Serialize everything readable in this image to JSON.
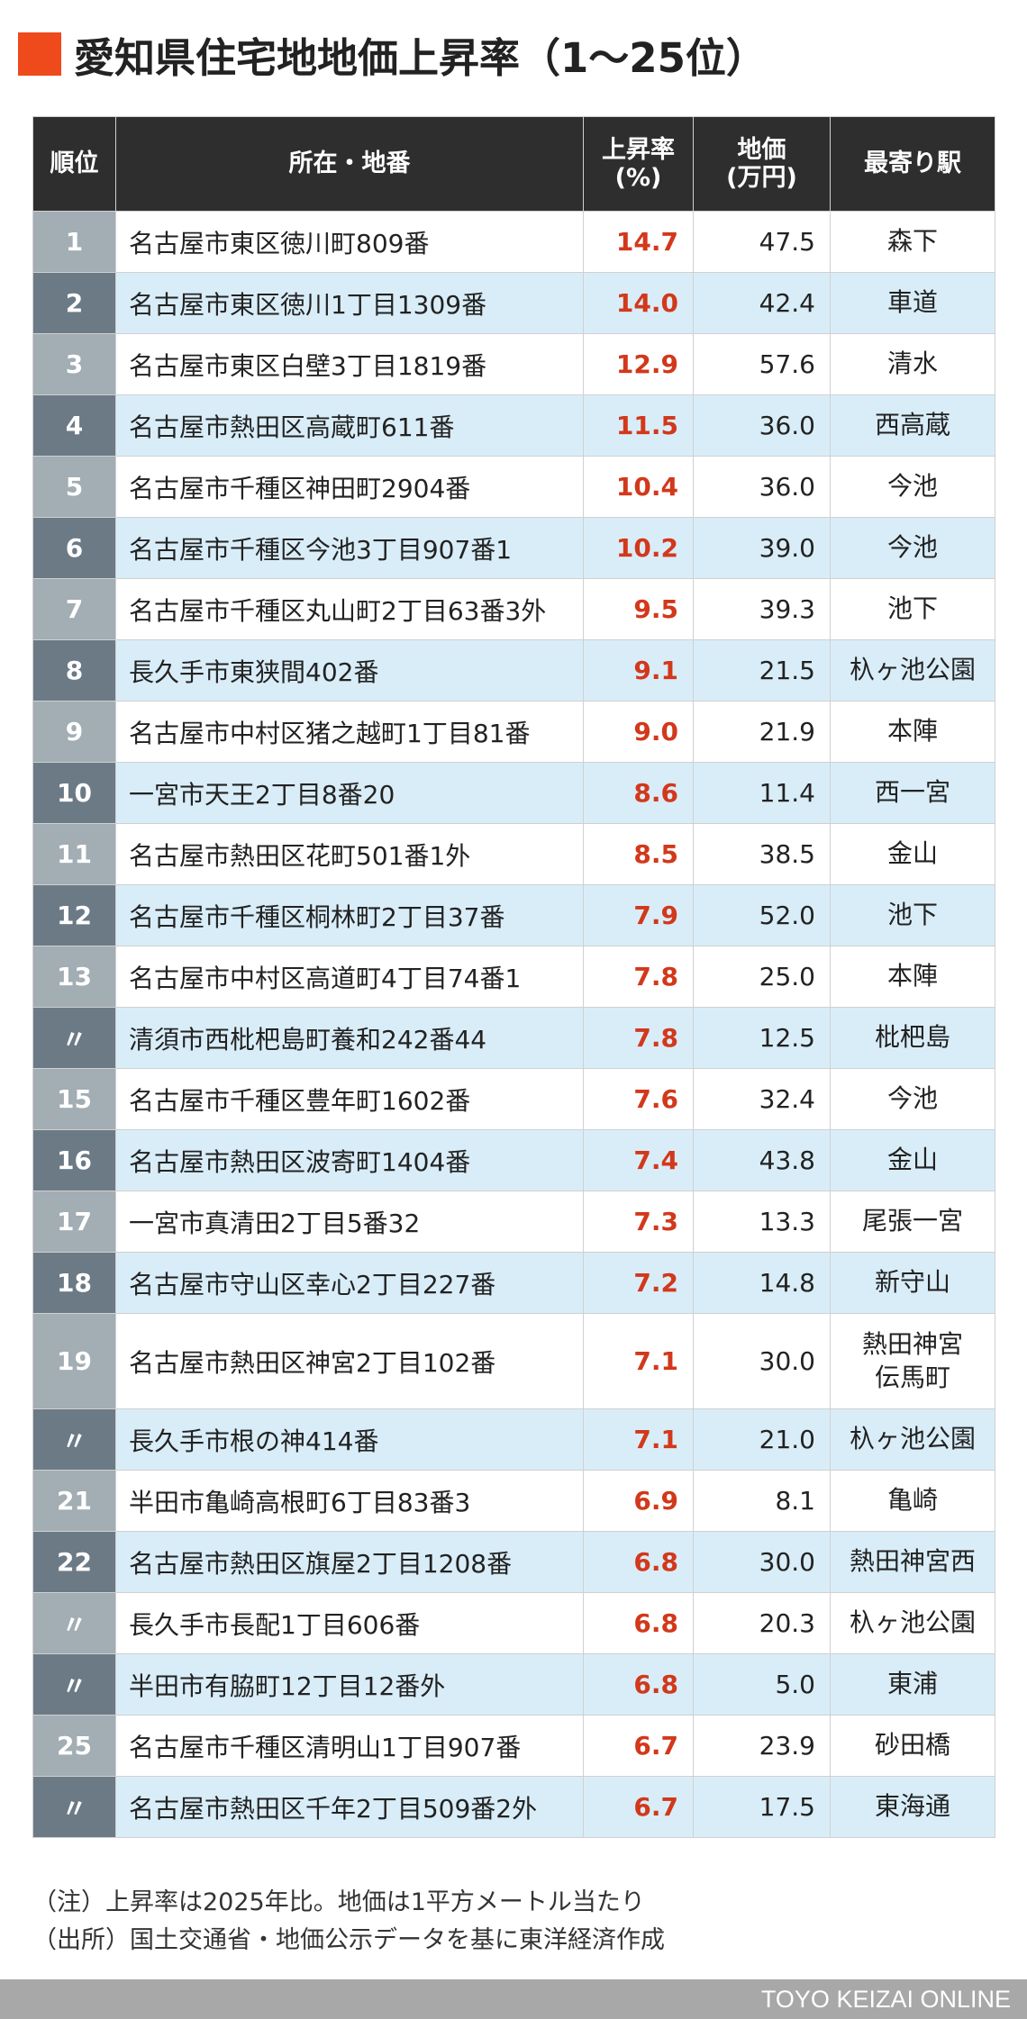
{
  "title": "愛知県住宅地地価上昇率（1〜25位）",
  "colors": {
    "accent": "#ee4a1c",
    "header_bg": "#2e2e2e",
    "rate_text": "#d2381b",
    "stripe": "#d9edf8"
  },
  "table": {
    "headers": {
      "rank": "順位",
      "address": "所在・地番",
      "rate_line1": "上昇率",
      "rate_line2": "(%)",
      "price_line1": "地価",
      "price_line2": "(万円)",
      "station": "最寄り駅"
    },
    "rows": [
      {
        "rank": "1",
        "address": "名古屋市東区徳川町809番",
        "rate": "14.7",
        "price": "47.5",
        "station": "森下"
      },
      {
        "rank": "2",
        "address": "名古屋市東区徳川1丁目1309番",
        "rate": "14.0",
        "price": "42.4",
        "station": "車道"
      },
      {
        "rank": "3",
        "address": "名古屋市東区白壁3丁目1819番",
        "rate": "12.9",
        "price": "57.6",
        "station": "清水"
      },
      {
        "rank": "4",
        "address": "名古屋市熱田区高蔵町611番",
        "rate": "11.5",
        "price": "36.0",
        "station": "西高蔵"
      },
      {
        "rank": "5",
        "address": "名古屋市千種区神田町2904番",
        "rate": "10.4",
        "price": "36.0",
        "station": "今池"
      },
      {
        "rank": "6",
        "address": "名古屋市千種区今池3丁目907番1",
        "rate": "10.2",
        "price": "39.0",
        "station": "今池"
      },
      {
        "rank": "7",
        "address": "名古屋市千種区丸山町2丁目63番3外",
        "rate": "9.5",
        "price": "39.3",
        "station": "池下"
      },
      {
        "rank": "8",
        "address": "長久手市東狭間402番",
        "rate": "9.1",
        "price": "21.5",
        "station": "杁ヶ池公園"
      },
      {
        "rank": "9",
        "address": "名古屋市中村区猪之越町1丁目81番",
        "rate": "9.0",
        "price": "21.9",
        "station": "本陣"
      },
      {
        "rank": "10",
        "address": "一宮市天王2丁目8番20",
        "rate": "8.6",
        "price": "11.4",
        "station": "西一宮"
      },
      {
        "rank": "11",
        "address": "名古屋市熱田区花町501番1外",
        "rate": "8.5",
        "price": "38.5",
        "station": "金山"
      },
      {
        "rank": "12",
        "address": "名古屋市千種区桐林町2丁目37番",
        "rate": "7.9",
        "price": "52.0",
        "station": "池下"
      },
      {
        "rank": "13",
        "address": "名古屋市中村区高道町4丁目74番1",
        "rate": "7.8",
        "price": "25.0",
        "station": "本陣"
      },
      {
        "rank": "〃",
        "address": "清須市西枇杷島町養和242番44",
        "rate": "7.8",
        "price": "12.5",
        "station": "枇杷島"
      },
      {
        "rank": "15",
        "address": "名古屋市千種区豊年町1602番",
        "rate": "7.6",
        "price": "32.4",
        "station": "今池"
      },
      {
        "rank": "16",
        "address": "名古屋市熱田区波寄町1404番",
        "rate": "7.4",
        "price": "43.8",
        "station": "金山"
      },
      {
        "rank": "17",
        "address": "一宮市真清田2丁目5番32",
        "rate": "7.3",
        "price": "13.3",
        "station": "尾張一宮"
      },
      {
        "rank": "18",
        "address": "名古屋市守山区幸心2丁目227番",
        "rate": "7.2",
        "price": "14.8",
        "station": "新守山"
      },
      {
        "rank": "19",
        "address": "名古屋市熱田区神宮2丁目102番",
        "rate": "7.1",
        "price": "30.0",
        "station": "熱田神宮伝馬町"
      },
      {
        "rank": "〃",
        "address": "長久手市根の神414番",
        "rate": "7.1",
        "price": "21.0",
        "station": "杁ヶ池公園"
      },
      {
        "rank": "21",
        "address": "半田市亀崎高根町6丁目83番3",
        "rate": "6.9",
        "price": "8.1",
        "station": "亀崎"
      },
      {
        "rank": "22",
        "address": "名古屋市熱田区旗屋2丁目1208番",
        "rate": "6.8",
        "price": "30.0",
        "station": "熱田神宮西"
      },
      {
        "rank": "〃",
        "address": "長久手市長配1丁目606番",
        "rate": "6.8",
        "price": "20.3",
        "station": "杁ヶ池公園"
      },
      {
        "rank": "〃",
        "address": "半田市有脇町12丁目12番外",
        "rate": "6.8",
        "price": "5.0",
        "station": "東浦"
      },
      {
        "rank": "25",
        "address": "名古屋市千種区清明山1丁目907番",
        "rate": "6.7",
        "price": "23.9",
        "station": "砂田橋"
      },
      {
        "rank": "〃",
        "address": "名古屋市熱田区千年2丁目509番2外",
        "rate": "6.7",
        "price": "17.5",
        "station": "東海通"
      }
    ]
  },
  "notes": {
    "note": "（注）上昇率は2025年比。地価は1平方メートル当たり",
    "source": "（出所）国土交通省・地価公示データを基に東洋経済作成"
  },
  "footer": {
    "brand": "TOYO KEIZAI ONLINE"
  }
}
